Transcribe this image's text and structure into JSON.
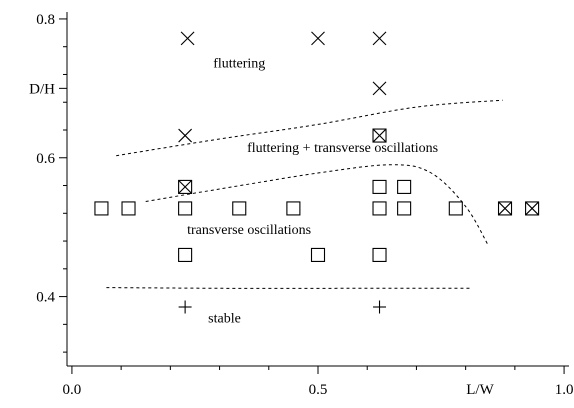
{
  "chart_data": {
    "type": "scatter",
    "xlabel": "L/W",
    "ylabel": "D/H",
    "xlim": [
      -0.01,
      1.01
    ],
    "ylim": [
      0.3,
      0.81
    ],
    "x_ticks": [
      0.0,
      0.5,
      1.0
    ],
    "x_tick_labels": [
      "0.0",
      "0.5",
      "1.0"
    ],
    "x_minor_ticks": [
      0.1,
      0.2,
      0.3,
      0.4,
      0.6,
      0.7,
      0.8,
      0.9
    ],
    "y_ticks": [
      0.4,
      0.6,
      0.8
    ],
    "y_tick_labels": [
      "0.4",
      "0.6",
      "0.8"
    ],
    "y_mid_tick": {
      "value": 0.7,
      "label": "D/H"
    },
    "y_minor_ticks": [
      0.32,
      0.36,
      0.44,
      0.48,
      0.52,
      0.56,
      0.64,
      0.68,
      0.72,
      0.76
    ],
    "grid": false,
    "legend": "none",
    "series": [
      {
        "marker": "cross",
        "points": [
          [
            0.235,
            0.772
          ],
          [
            0.5,
            0.772
          ],
          [
            0.625,
            0.772
          ],
          [
            0.625,
            0.7
          ],
          [
            0.23,
            0.632
          ]
        ]
      },
      {
        "marker": "boxed-cross",
        "points": [
          [
            0.625,
            0.632
          ],
          [
            0.23,
            0.558
          ],
          [
            0.88,
            0.527
          ],
          [
            0.935,
            0.527
          ]
        ]
      },
      {
        "marker": "square",
        "points": [
          [
            0.06,
            0.527
          ],
          [
            0.115,
            0.527
          ],
          [
            0.23,
            0.527
          ],
          [
            0.34,
            0.527
          ],
          [
            0.45,
            0.527
          ],
          [
            0.625,
            0.527
          ],
          [
            0.675,
            0.527
          ],
          [
            0.78,
            0.527
          ],
          [
            0.625,
            0.558
          ],
          [
            0.675,
            0.558
          ],
          [
            0.23,
            0.46
          ],
          [
            0.5,
            0.46
          ],
          [
            0.625,
            0.46
          ]
        ]
      },
      {
        "marker": "plus",
        "points": [
          [
            0.23,
            0.385
          ],
          [
            0.625,
            0.385
          ]
        ]
      }
    ],
    "boundaries": [
      [
        [
          0.09,
          0.603
        ],
        [
          0.3,
          0.627
        ],
        [
          0.5,
          0.648
        ],
        [
          0.7,
          0.673
        ],
        [
          0.875,
          0.683
        ]
      ],
      [
        [
          0.15,
          0.537
        ],
        [
          0.3,
          0.555
        ],
        [
          0.5,
          0.578
        ],
        [
          0.65,
          0.59
        ],
        [
          0.73,
          0.578
        ],
        [
          0.8,
          0.53
        ],
        [
          0.845,
          0.475
        ]
      ],
      [
        [
          0.07,
          0.413
        ],
        [
          0.3,
          0.412
        ],
        [
          0.6,
          0.412
        ],
        [
          0.81,
          0.412
        ]
      ]
    ],
    "annotations": [
      {
        "text": "fluttering",
        "x": 0.34,
        "y": 0.73
      },
      {
        "text": "fluttering + transverse oscillations",
        "x": 0.55,
        "y": 0.608
      },
      {
        "text": "transverse oscillations",
        "x": 0.36,
        "y": 0.49
      },
      {
        "text": "stable",
        "x": 0.31,
        "y": 0.363
      }
    ]
  }
}
